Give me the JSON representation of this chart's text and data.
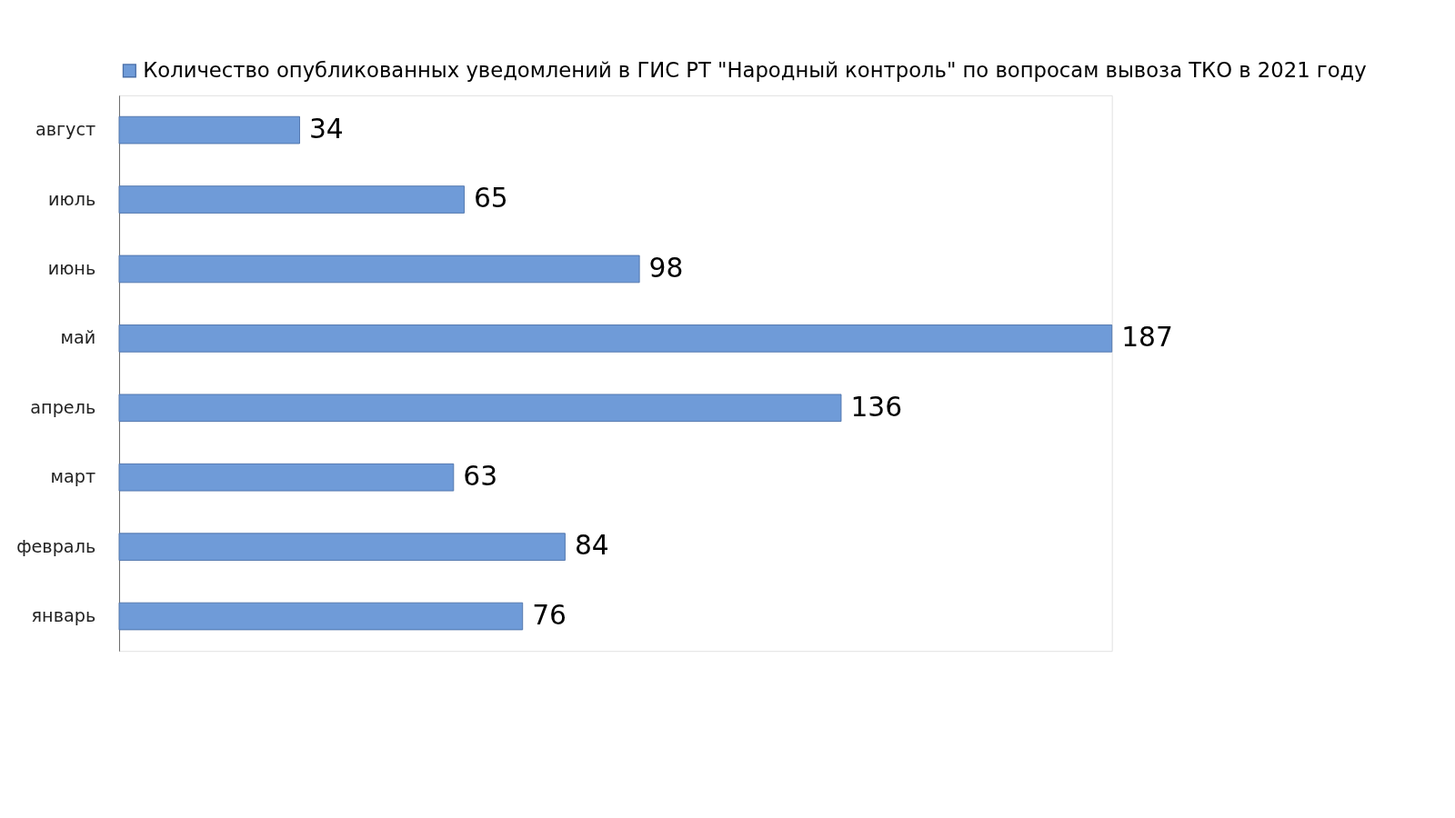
{
  "chart_data": {
    "type": "bar",
    "orientation": "horizontal",
    "categories": [
      "август",
      "июль",
      "июнь",
      "май",
      "апрель",
      "март",
      "февраль",
      "январь"
    ],
    "series": [
      {
        "name": "Количество опубликованных уведомлений в ГИС РТ \"Народный контроль\" по вопросам вывоза ТКО в 2021 году",
        "color": "#6f9bd8",
        "values": [
          34,
          65,
          98,
          187,
          136,
          63,
          84,
          76
        ]
      }
    ],
    "data_labels": true,
    "legend": "top",
    "grid": false
  }
}
